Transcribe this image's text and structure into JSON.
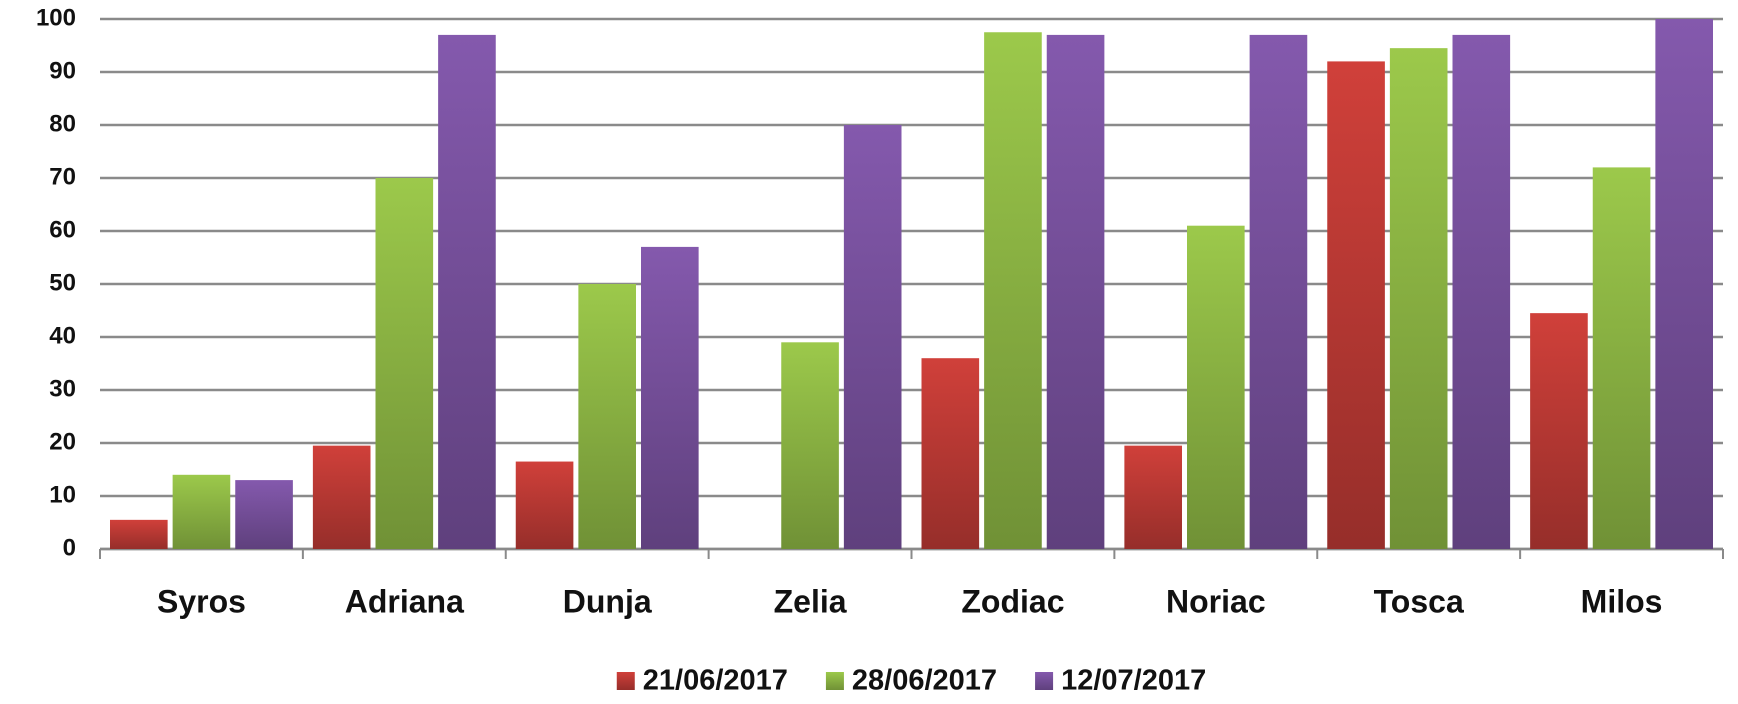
{
  "chart_data": {
    "type": "bar",
    "categories": [
      "Syros",
      "Adriana",
      "Dunja",
      "Zelia",
      "Zodiac",
      "Noriac",
      "Tosca",
      "Milos"
    ],
    "series": [
      {
        "name": "21/06/2017",
        "color": "#d0403a",
        "values": [
          5.5,
          19.5,
          16.5,
          null,
          36,
          19.5,
          92,
          44.5
        ]
      },
      {
        "name": "28/06/2017",
        "color": "#9cc94b",
        "values": [
          14,
          70,
          50,
          39,
          97.5,
          61,
          94.5,
          72
        ]
      },
      {
        "name": "12/07/2017",
        "color": "#8459ad",
        "values": [
          13,
          97,
          57,
          80,
          97,
          97,
          97,
          100
        ]
      }
    ],
    "ylim": [
      0,
      100
    ],
    "yticks": [
      0,
      10,
      20,
      30,
      40,
      50,
      60,
      70,
      80,
      90,
      100
    ],
    "grid": true,
    "legend": "bottom"
  }
}
